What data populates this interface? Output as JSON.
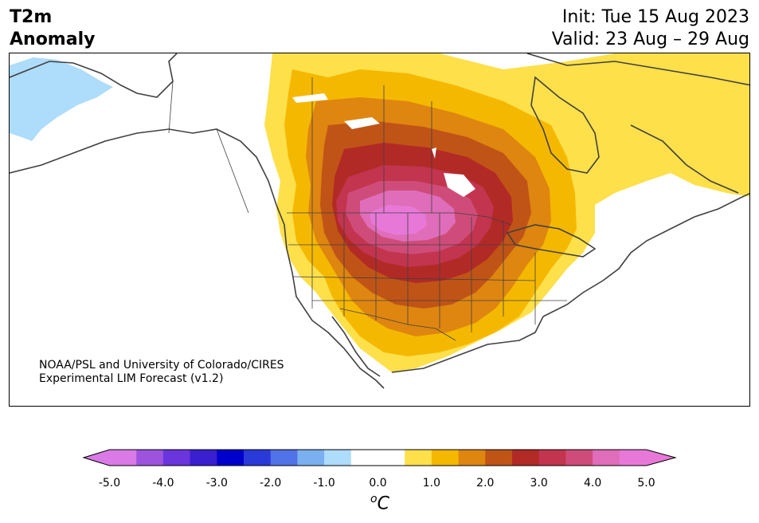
{
  "header": {
    "title_line1": "T2m",
    "title_line2": "Anomaly",
    "init": "Init: Tue 15 Aug 2023",
    "valid": "Valid: 23 Aug – 29 Aug"
  },
  "credit": {
    "line1": "NOAA/PSL and University of Colorado/CIRES",
    "line2": "Experimental LIM Forecast (v1.2)"
  },
  "colorbar": {
    "unit_main": "C",
    "unit_sup": "o",
    "ticks": [
      "-5.0",
      "-4.0",
      "-3.0",
      "-2.0",
      "-1.0",
      "0.0",
      "1.0",
      "2.0",
      "3.0",
      "4.0",
      "5.0"
    ],
    "colors": [
      "#d97ae6",
      "#9e53de",
      "#6a35dc",
      "#3a1fd0",
      "#0000cc",
      "#2a3ad8",
      "#4f72e6",
      "#7ab0f0",
      "#aedcfb",
      "#ffffff",
      "#ffffff",
      "#fde04a",
      "#f5b800",
      "#de8610",
      "#c05416",
      "#b22a26",
      "#c3344f",
      "#cf4c7a",
      "#df6db9",
      "#e878d8"
    ],
    "under_color": "#d97ae6",
    "over_color": "#e878d8"
  },
  "map_colors": {
    "land": "#ffffff",
    "plus_0_5": "#fde04a",
    "plus_1_0": "#f5b800",
    "plus_1_5": "#de8610",
    "plus_2_0": "#c05416",
    "plus_2_5": "#b22a26",
    "plus_3_0": "#c3344f",
    "plus_3_5": "#cf4c7a",
    "plus_4_0": "#df6db9",
    "plus_4_5": "#e878d8",
    "minus_0_5": "#aedcfb",
    "coastline": "#404040"
  }
}
